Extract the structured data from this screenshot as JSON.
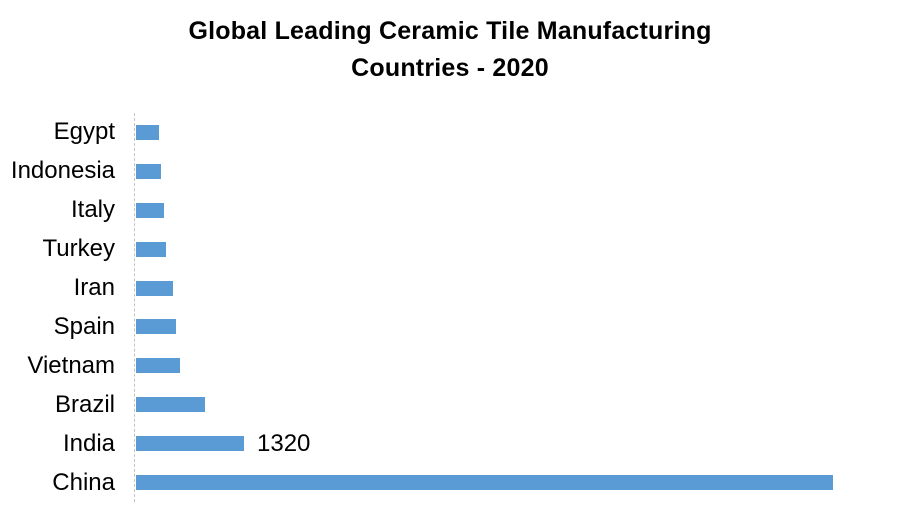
{
  "chart_data": {
    "type": "bar",
    "orientation": "horizontal",
    "title": "Global Leading Ceramic Tile Manufacturing Countries - 2020",
    "title_lines": [
      "Global Leading Ceramic Tile Manufacturing",
      "Countries - 2020"
    ],
    "categories": [
      "Egypt",
      "Indonesia",
      "Italy",
      "Turkey",
      "Iran",
      "Spain",
      "Vietnam",
      "Brazil",
      "India",
      "China"
    ],
    "values": [
      280,
      305,
      340,
      365,
      450,
      490,
      540,
      845,
      1320,
      8520
    ],
    "data_labels": {
      "India": "1320"
    },
    "xlabel": "",
    "ylabel": "",
    "xlim": [
      0,
      8520
    ],
    "gridlines": false,
    "legend": false,
    "x_axis_ticks_visible": false,
    "bar_color": "#5B9BD5",
    "axis_line_color": "#c3c3c3",
    "title_color": "#000000",
    "label_color": "#000000",
    "background_color": "#ffffff"
  }
}
